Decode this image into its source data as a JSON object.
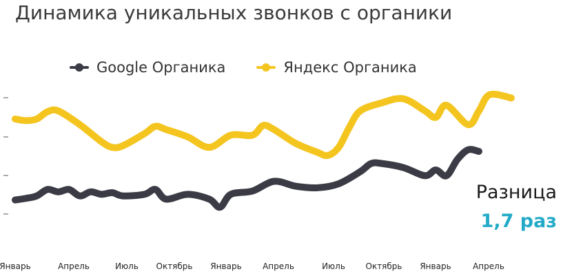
{
  "title": "Динамика уникальных звонков с органики",
  "colors": {
    "google": "#3a3b45",
    "yandex": "#f4c51f",
    "accent": "#23aac8"
  },
  "annotation": {
    "label": "Разница",
    "value": "1,7 раз"
  },
  "chart_data": {
    "type": "line",
    "title": "Динамика уникальных звонков с органики",
    "xlabel": "",
    "ylabel": "",
    "grid": false,
    "legend": "top",
    "x_tick_labels": [
      "Январь",
      "Апрель",
      "Июль",
      "Октябрь",
      "Январь",
      "Апрель",
      "Июль",
      "Октябрь",
      "Январь",
      "Апрель"
    ],
    "series": [
      {
        "name": "Google Органика",
        "color": "#3a3b45",
        "points": [
          [
            0,
            275
          ],
          [
            0.5,
            273
          ],
          [
            1,
            270
          ],
          [
            1.5,
            262
          ],
          [
            2,
            265
          ],
          [
            2.5,
            262
          ],
          [
            3,
            270
          ],
          [
            3.5,
            265
          ],
          [
            4,
            268
          ],
          [
            4.5,
            266
          ],
          [
            5,
            270
          ],
          [
            6,
            268
          ],
          [
            6.5,
            262
          ],
          [
            7,
            274
          ],
          [
            8,
            268
          ],
          [
            9,
            274
          ],
          [
            9.5,
            284
          ],
          [
            10,
            268
          ],
          [
            11,
            264
          ],
          [
            12,
            252
          ],
          [
            13,
            258
          ],
          [
            14,
            260
          ],
          [
            15,
            255
          ],
          [
            16,
            240
          ],
          [
            16.5,
            230
          ],
          [
            17,
            230
          ],
          [
            18,
            235
          ],
          [
            19,
            245
          ],
          [
            19.5,
            238
          ],
          [
            20,
            245
          ],
          [
            20.5,
            225
          ],
          [
            21,
            213
          ],
          [
            21.5,
            215
          ]
        ]
      },
      {
        "name": "Яндекс Органика",
        "color": "#f4c51f",
        "points": [
          [
            0,
            175
          ],
          [
            0.5,
            177
          ],
          [
            1,
            175
          ],
          [
            1.5,
            166
          ],
          [
            2,
            165
          ],
          [
            3,
            182
          ],
          [
            4,
            203
          ],
          [
            4.5,
            210
          ],
          [
            5,
            208
          ],
          [
            6,
            193
          ],
          [
            6.5,
            184
          ],
          [
            7,
            188
          ],
          [
            8,
            197
          ],
          [
            9,
            210
          ],
          [
            10,
            195
          ],
          [
            11,
            195
          ],
          [
            11.5,
            183
          ],
          [
            12,
            188
          ],
          [
            13,
            205
          ],
          [
            14,
            216
          ],
          [
            14.5,
            220
          ],
          [
            15,
            210
          ],
          [
            15.5,
            185
          ],
          [
            16,
            165
          ],
          [
            17,
            155
          ],
          [
            18,
            150
          ],
          [
            19,
            165
          ],
          [
            19.5,
            173
          ],
          [
            20,
            158
          ],
          [
            21,
            182
          ],
          [
            21.5,
            165
          ],
          [
            22,
            145
          ],
          [
            23,
            149
          ]
        ]
      }
    ]
  }
}
